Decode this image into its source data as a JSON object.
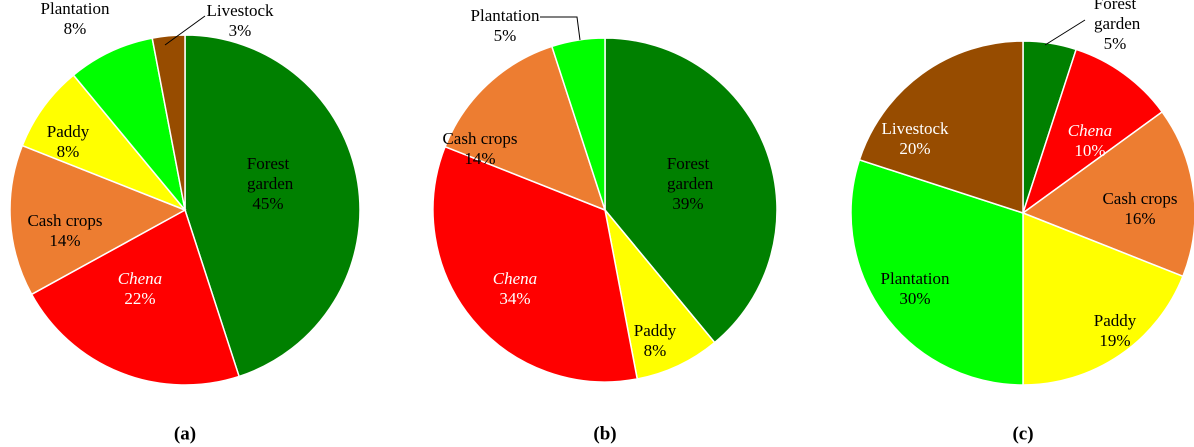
{
  "chart_data": [
    {
      "type": "pie",
      "title": "(a)",
      "categories": [
        "Forest garden",
        "Chena",
        "Cash crops",
        "Paddy",
        "Plantation",
        "Livestock"
      ],
      "values": [
        45,
        22,
        14,
        8,
        8,
        3
      ],
      "value_labels": [
        "45%",
        "22%",
        "14%",
        "8%",
        "8%",
        "3%"
      ],
      "colors": [
        "#008000",
        "#ff0000",
        "#ed7d31",
        "#ffff00",
        "#00ff00",
        "#974c00"
      ],
      "label_colors": [
        "#000000",
        "#ffffff",
        "#000000",
        "#000000",
        "#000000",
        "#000000"
      ],
      "label_styles": [
        "normal",
        "italic",
        "normal",
        "normal",
        "normal",
        "normal"
      ]
    },
    {
      "type": "pie",
      "title": "(b)",
      "categories": [
        "Forest garden",
        "Paddy",
        "Chena",
        "Cash crops",
        "Plantation"
      ],
      "values": [
        39,
        8,
        34,
        14,
        5
      ],
      "value_labels": [
        "39%",
        "8%",
        "34%",
        "14%",
        "5%"
      ],
      "colors": [
        "#008000",
        "#ffff00",
        "#ff0000",
        "#ed7d31",
        "#00ff00"
      ],
      "label_colors": [
        "#000000",
        "#000000",
        "#ffffff",
        "#000000",
        "#000000"
      ],
      "label_styles": [
        "normal",
        "normal",
        "italic",
        "normal",
        "normal"
      ]
    },
    {
      "type": "pie",
      "title": "(c)",
      "categories": [
        "Forest garden",
        "Chena",
        "Cash crops",
        "Paddy",
        "Plantation",
        "Livestock"
      ],
      "values": [
        5,
        10,
        16,
        19,
        30,
        20
      ],
      "value_labels": [
        "5%",
        "10%",
        "16%",
        "19%",
        "30%",
        "20%"
      ],
      "colors": [
        "#008000",
        "#ff0000",
        "#ed7d31",
        "#ffff00",
        "#00ff00",
        "#974c00"
      ],
      "label_colors": [
        "#000000",
        "#ffffff",
        "#000000",
        "#000000",
        "#000000",
        "#ffffff"
      ],
      "label_styles": [
        "normal",
        "italic",
        "normal",
        "normal",
        "normal",
        "normal"
      ]
    }
  ]
}
